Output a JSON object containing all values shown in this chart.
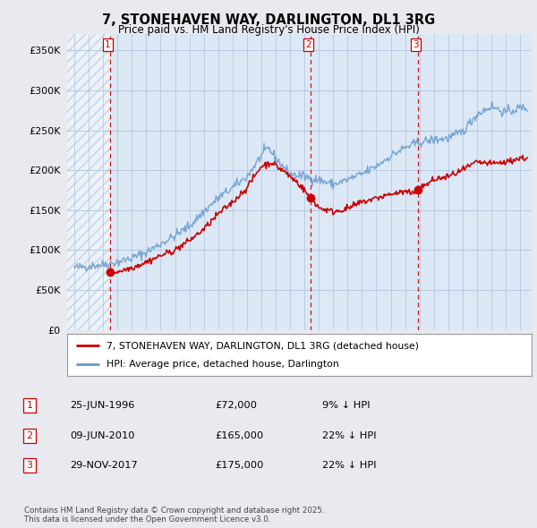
{
  "title": "7, STONEHAVEN WAY, DARLINGTON, DL1 3RG",
  "subtitle": "Price paid vs. HM Land Registry's House Price Index (HPI)",
  "ylim": [
    0,
    370000
  ],
  "yticks": [
    0,
    50000,
    100000,
    150000,
    200000,
    250000,
    300000,
    350000
  ],
  "ytick_labels": [
    "£0",
    "£50K",
    "£100K",
    "£150K",
    "£200K",
    "£250K",
    "£300K",
    "£350K"
  ],
  "xlim_start": 1993.5,
  "xlim_end": 2025.8,
  "background_color": "#e8eaf0",
  "plot_bg_color": "#dce8f5",
  "grid_color": "#b0c4de",
  "hatch_color": "#c0c8d8",
  "sale_dates": [
    1996.48,
    2010.44,
    2017.91
  ],
  "sale_prices": [
    72000,
    165000,
    175000
  ],
  "sale_labels": [
    "1",
    "2",
    "3"
  ],
  "legend_property": "7, STONEHAVEN WAY, DARLINGTON, DL1 3RG (detached house)",
  "legend_hpi": "HPI: Average price, detached house, Darlington",
  "table_rows": [
    {
      "num": "1",
      "date": "25-JUN-1996",
      "price": "£72,000",
      "hpi": "9% ↓ HPI"
    },
    {
      "num": "2",
      "date": "09-JUN-2010",
      "price": "£165,000",
      "hpi": "22% ↓ HPI"
    },
    {
      "num": "3",
      "date": "29-NOV-2017",
      "price": "£175,000",
      "hpi": "22% ↓ HPI"
    }
  ],
  "footer": "Contains HM Land Registry data © Crown copyright and database right 2025.\nThis data is licensed under the Open Government Licence v3.0.",
  "red_line_color": "#cc0000",
  "blue_line_color": "#6699cc",
  "dashed_vline_color": "#cc0000"
}
